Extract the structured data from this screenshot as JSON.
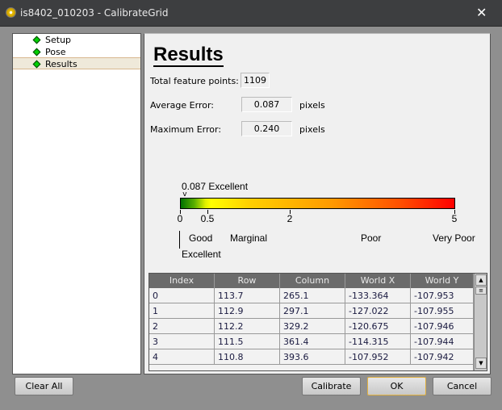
{
  "window": {
    "title": "is8402_010203 - CalibrateGrid",
    "close": "✕"
  },
  "nav": {
    "items": [
      {
        "label": "Setup"
      },
      {
        "label": "Pose"
      },
      {
        "label": "Results",
        "selected": true
      }
    ]
  },
  "results": {
    "heading": "Results",
    "total_label": "Total feature points:",
    "total_value": "1109",
    "avg_label": "Average Error:",
    "avg_value": "0.087",
    "avg_unit": "pixels",
    "max_label": "Maximum Error:",
    "max_value": "0.240",
    "max_unit": "pixels"
  },
  "scale": {
    "marker_value": 0.087,
    "marker_label": "0.087 Excellent",
    "min": 0,
    "max": 5,
    "ticks": [
      "0",
      "0.5",
      "2",
      "5"
    ],
    "categories": {
      "excellent": "Excellent",
      "good": "Good",
      "marginal": "Marginal",
      "poor": "Poor",
      "very_poor": "Very Poor"
    },
    "colors": {
      "low": "#007000",
      "mid": "#ffff00",
      "high": "#ff0000"
    }
  },
  "table": {
    "headers": [
      "Index",
      "Row",
      "Column",
      "World X",
      "World Y"
    ],
    "rows": [
      [
        "0",
        "113.7",
        "265.1",
        "-133.364",
        "-107.953"
      ],
      [
        "1",
        "112.9",
        "297.1",
        "-127.022",
        "-107.955"
      ],
      [
        "2",
        "112.2",
        "329.2",
        "-120.675",
        "-107.946"
      ],
      [
        "3",
        "111.5",
        "361.4",
        "-114.315",
        "-107.944"
      ],
      [
        "4",
        "110.8",
        "393.6",
        "-107.952",
        "-107.942"
      ]
    ]
  },
  "buttons": {
    "clear_all": "Clear All",
    "calibrate": "Calibrate",
    "ok": "OK",
    "cancel": "Cancel"
  }
}
